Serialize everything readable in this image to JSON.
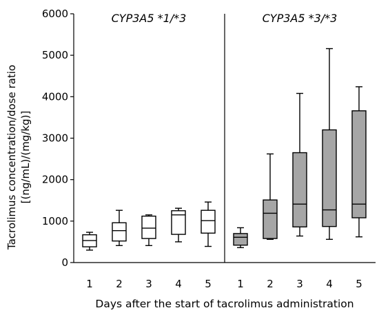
{
  "chart_data": {
    "type": "boxplot",
    "xlabel": "Days after the start of tacrolimus administration",
    "ylabel_line1": "Tacrolimus concentration/dose ratio",
    "ylabel_line2": "[(ng/mL)/(mg/kg)]",
    "ylim": [
      0,
      6000
    ],
    "y_ticks": [
      "0",
      "1000",
      "2000",
      "3000",
      "4000",
      "5000",
      "6000"
    ],
    "x_categories": [
      "1",
      "2",
      "3",
      "4",
      "5"
    ],
    "grid": false,
    "panels": [
      {
        "title": "CYP3A5 *1/*3",
        "fill_color": "#ffffff",
        "boxes": [
          {
            "day": "1",
            "min": 300,
            "q1": 380,
            "median": 530,
            "q3": 670,
            "max": 730
          },
          {
            "day": "2",
            "min": 410,
            "q1": 520,
            "median": 770,
            "q3": 960,
            "max": 1260
          },
          {
            "day": "3",
            "min": 410,
            "q1": 580,
            "median": 830,
            "q3": 1120,
            "max": 1150
          },
          {
            "day": "4",
            "min": 500,
            "q1": 680,
            "median": 1150,
            "q3": 1250,
            "max": 1310
          },
          {
            "day": "5",
            "min": 390,
            "q1": 710,
            "median": 1010,
            "q3": 1260,
            "max": 1460
          }
        ]
      },
      {
        "title": "CYP3A5 *3/*3",
        "fill_color": "#a6a6a6",
        "boxes": [
          {
            "day": "1",
            "min": 360,
            "q1": 420,
            "median": 610,
            "q3": 700,
            "max": 840
          },
          {
            "day": "2",
            "min": 560,
            "q1": 580,
            "median": 1190,
            "q3": 1510,
            "max": 2620
          },
          {
            "day": "3",
            "min": 640,
            "q1": 860,
            "median": 1410,
            "q3": 2650,
            "max": 4080
          },
          {
            "day": "4",
            "min": 560,
            "q1": 870,
            "median": 1270,
            "q3": 3200,
            "max": 5160
          },
          {
            "day": "5",
            "min": 620,
            "q1": 1080,
            "median": 1410,
            "q3": 3660,
            "max": 4240
          }
        ]
      }
    ]
  }
}
